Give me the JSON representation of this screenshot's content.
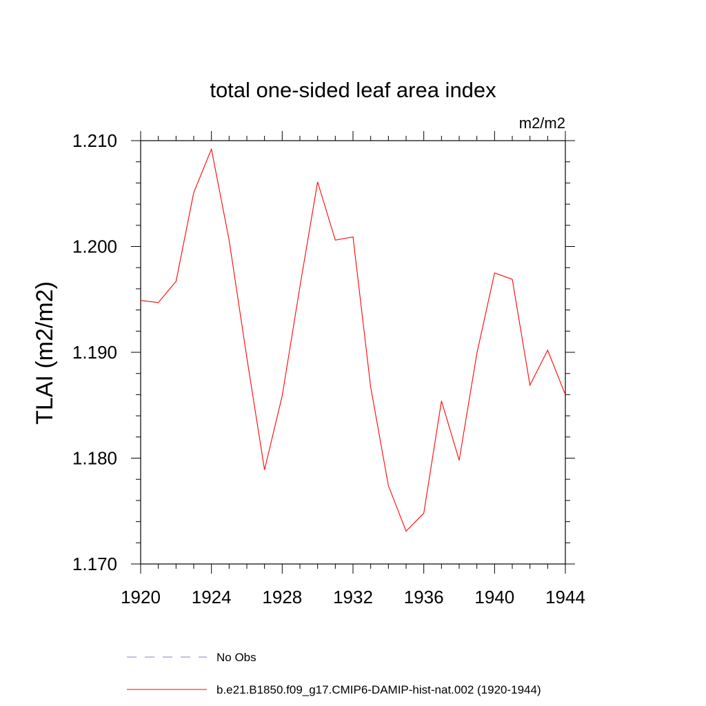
{
  "chart_data": {
    "type": "line",
    "title": "total one-sided leaf area index",
    "units_label": "m2/m2",
    "ylabel": "TLAI  (m2/m2)",
    "xlabel": "",
    "xlim": [
      1920,
      1944
    ],
    "ylim": [
      1.17,
      1.21
    ],
    "x_ticks": [
      "1920",
      "1924",
      "1928",
      "1932",
      "1936",
      "1940",
      "1944"
    ],
    "y_ticks": [
      "1.170",
      "1.180",
      "1.190",
      "1.200",
      "1.210"
    ],
    "grid": false,
    "legend_position": "bottom",
    "series": [
      {
        "name": "No Obs",
        "color": "#8080c0",
        "style": "dashed",
        "x": [],
        "values": []
      },
      {
        "name": "b.e21.B1850.f09_g17.CMIP6-DAMIP-hist-nat.002 (1920-1944)",
        "color": "#ff0000",
        "style": "solid",
        "x": [
          1920,
          1921,
          1922,
          1923,
          1924,
          1925,
          1926,
          1927,
          1928,
          1929,
          1930,
          1931,
          1932,
          1933,
          1934,
          1935,
          1936,
          1937,
          1938,
          1939,
          1940,
          1941,
          1942,
          1943,
          1944
        ],
        "values": [
          1.1949,
          1.1947,
          1.1967,
          1.2051,
          1.2092,
          1.2006,
          1.1895,
          1.1789,
          1.1859,
          1.1962,
          1.2061,
          1.2006,
          1.2009,
          1.1867,
          1.1774,
          1.1731,
          1.1748,
          1.1854,
          1.1798,
          1.1899,
          1.1975,
          1.1969,
          1.1869,
          1.1902,
          1.186
        ]
      }
    ]
  }
}
